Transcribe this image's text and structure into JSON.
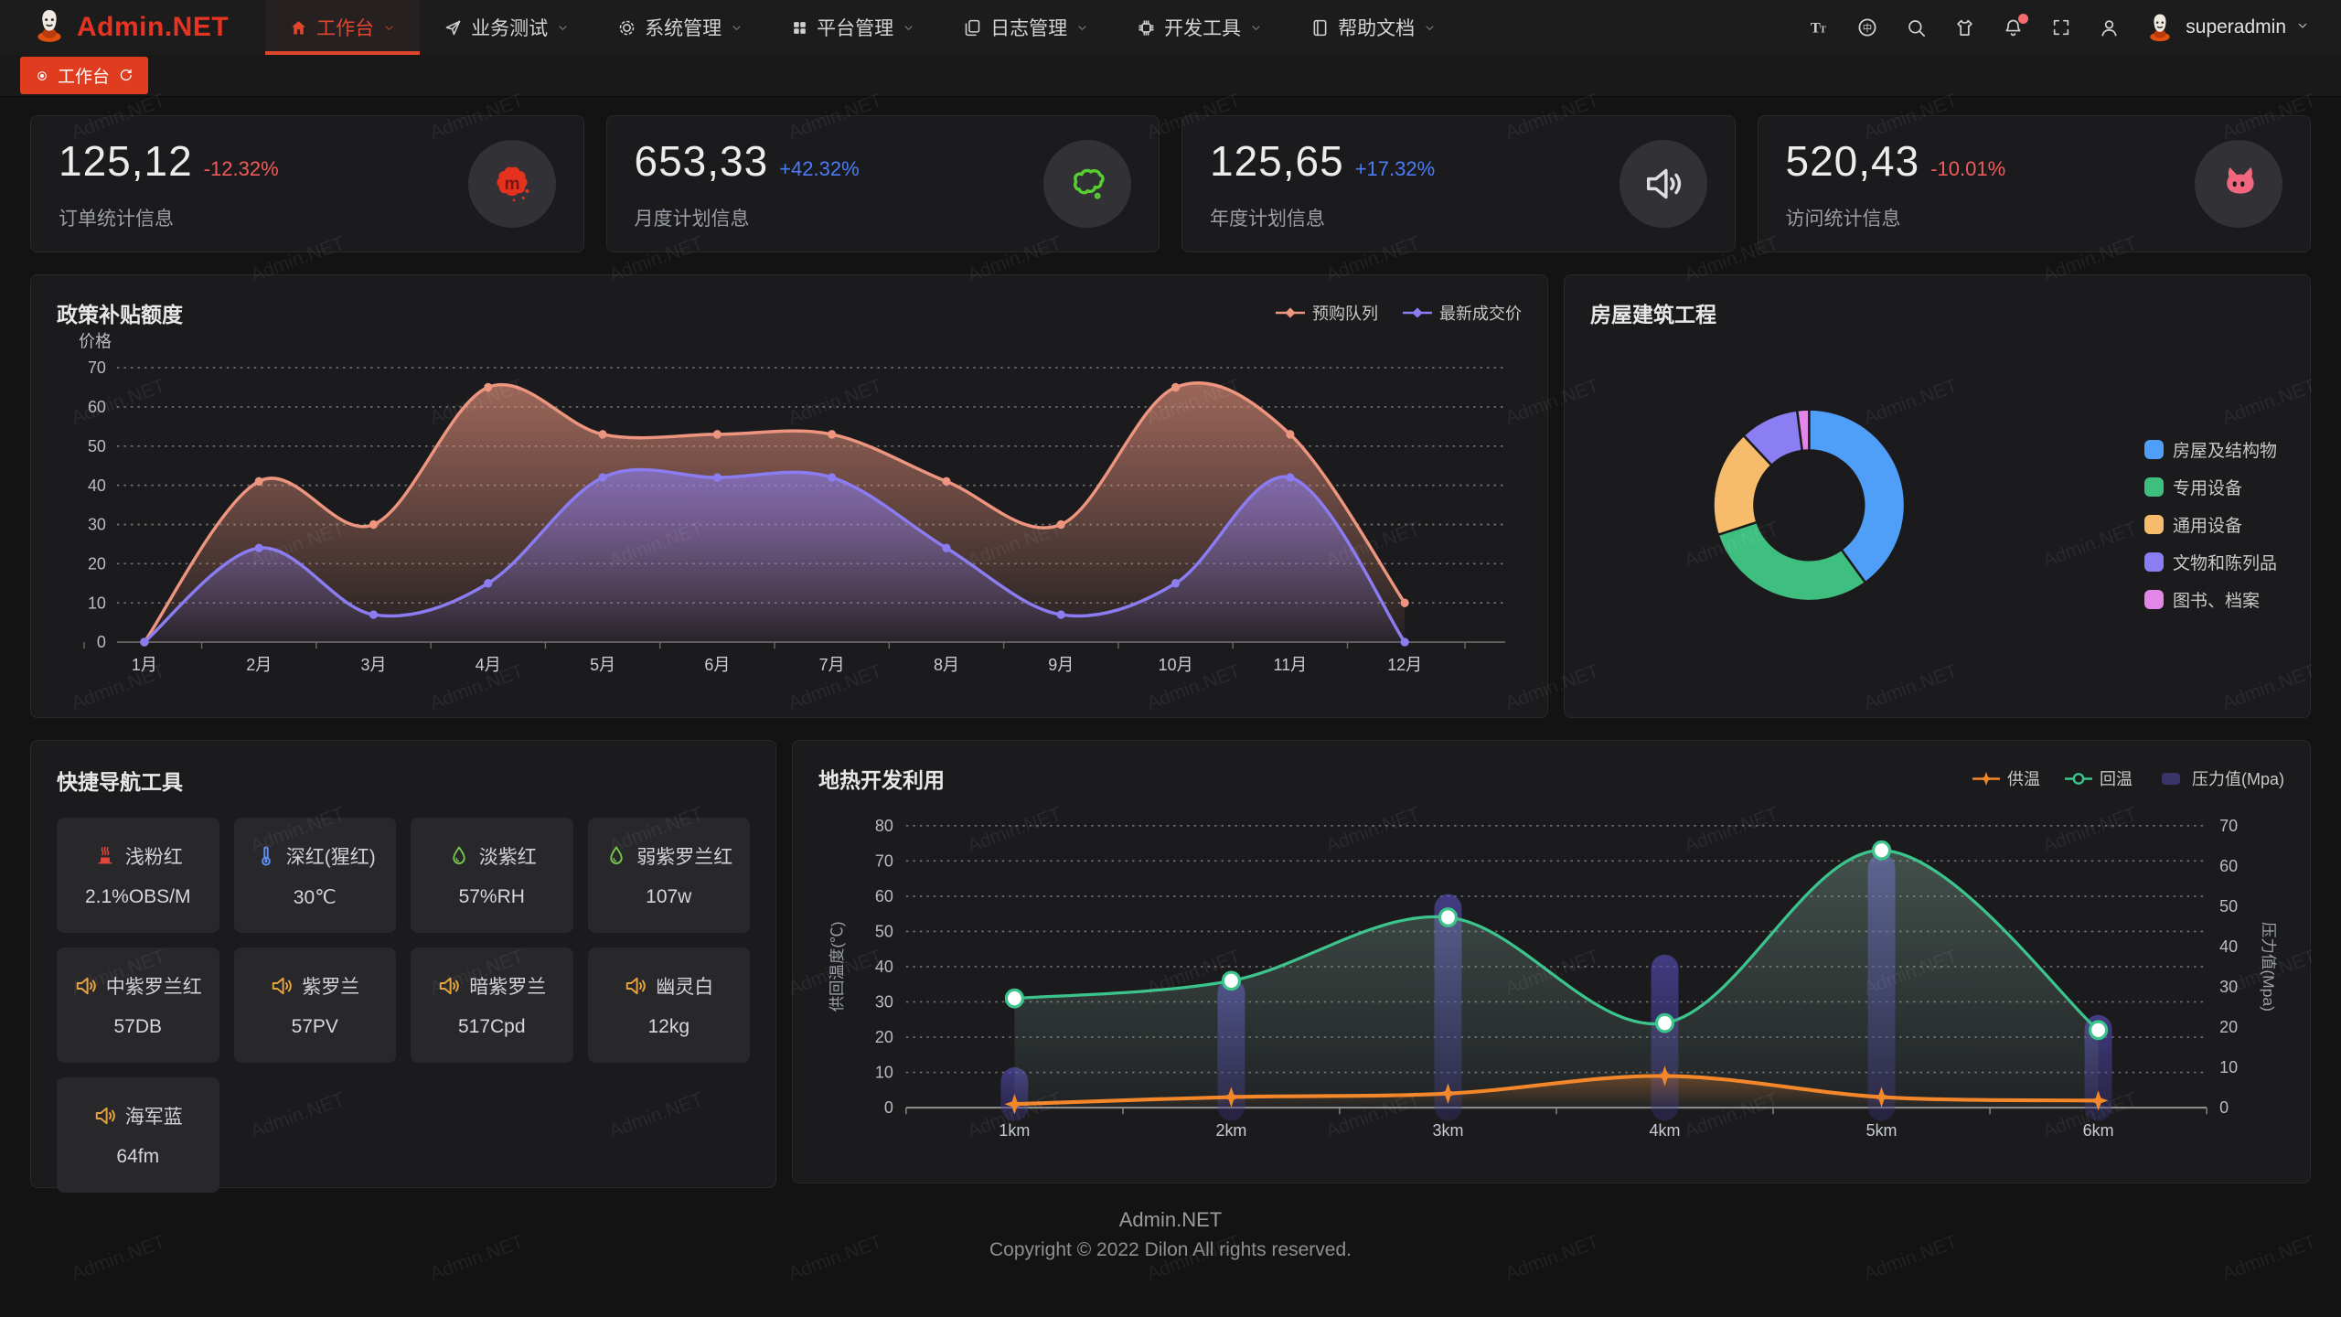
{
  "watermark": {
    "text": "Admin.NET"
  },
  "theme": {
    "accent": "#e0462e",
    "tab_red": "#df3c20",
    "logo_red": "#e53422",
    "delta_down": "#f05b5b",
    "delta_up": "#4b7cf7",
    "grid_line": "rgba(255,255,255,0.38)",
    "axis_text": "#b9bcc4"
  },
  "header": {
    "logo_text": "Admin.NET",
    "nav": [
      {
        "label": "工作台",
        "icon": "home-icon",
        "active": true,
        "has_dropdown": true
      },
      {
        "label": "业务测试",
        "icon": "send-icon",
        "active": false,
        "has_dropdown": true
      },
      {
        "label": "系统管理",
        "icon": "gear-icon",
        "active": false,
        "has_dropdown": true
      },
      {
        "label": "平台管理",
        "icon": "grid-icon",
        "active": false,
        "has_dropdown": true
      },
      {
        "label": "日志管理",
        "icon": "log-icon",
        "active": false,
        "has_dropdown": true
      },
      {
        "label": "开发工具",
        "icon": "chip-icon",
        "active": false,
        "has_dropdown": true
      },
      {
        "label": "帮助文档",
        "icon": "book-icon",
        "active": false,
        "has_dropdown": true
      }
    ],
    "actions": [
      {
        "icon": "font-size-icon"
      },
      {
        "icon": "language-icon"
      },
      {
        "icon": "search-icon"
      },
      {
        "icon": "theme-shirt-icon"
      },
      {
        "icon": "notification-bell-icon",
        "badge": true
      },
      {
        "icon": "fullscreen-icon"
      },
      {
        "icon": "user-icon"
      }
    ],
    "username": "superadmin"
  },
  "tabbar": {
    "tabs": [
      {
        "label": "工作台",
        "active": true
      }
    ]
  },
  "stat_cards": [
    {
      "value": "125,12",
      "delta": "-12.32%",
      "delta_color": "#f05b5b",
      "label": "订单统计信息",
      "icon": "splat-icon"
    },
    {
      "value": "653,33",
      "delta": "+42.32%",
      "delta_color": "#4b7cf7",
      "label": "月度计划信息",
      "icon": "china-map-icon"
    },
    {
      "value": "125,65",
      "delta": "+17.32%",
      "delta_color": "#4b7cf7",
      "label": "年度计划信息",
      "icon": "speaker-icon"
    },
    {
      "value": "520,43",
      "delta": "-10.01%",
      "delta_color": "#f05b5b",
      "label": "访问统计信息",
      "icon": "cat-icon"
    }
  ],
  "chart_data": [
    {
      "id": "subsidy",
      "type": "area",
      "title": "政策补贴额度",
      "ylabel": "价格",
      "ylim": [
        0,
        70
      ],
      "ytick_step": 10,
      "grid": "dashed",
      "legend_position": "top-right",
      "categories": [
        "1月",
        "2月",
        "3月",
        "4月",
        "5月",
        "6月",
        "7月",
        "8月",
        "9月",
        "10月",
        "11月",
        "12月"
      ],
      "series": [
        {
          "name": "预购队列",
          "color": "#ed957f",
          "values": [
            0,
            41,
            30,
            65,
            53,
            53,
            53,
            41,
            30,
            65,
            53,
            10
          ]
        },
        {
          "name": "最新成交价",
          "color": "#8b7df1",
          "values": [
            0,
            24,
            7,
            15,
            42,
            42,
            42,
            24,
            7,
            15,
            42,
            0
          ]
        }
      ]
    },
    {
      "id": "building",
      "type": "pie",
      "title": "房屋建筑工程",
      "legend_position": "right",
      "slices": [
        {
          "name": "房屋及结构物",
          "value": 40,
          "color": "#4f9ef7"
        },
        {
          "name": "专用设备",
          "value": 30,
          "color": "#3fbf7f"
        },
        {
          "name": "通用设备",
          "value": 18,
          "color": "#f7bc6b"
        },
        {
          "name": "文物和陈列品",
          "value": 10,
          "color": "#8b7df2"
        },
        {
          "name": "图书、档案",
          "value": 2,
          "color": "#e287e8"
        }
      ]
    },
    {
      "id": "geothermal",
      "type": "mixed",
      "title": "地热开发利用",
      "categories": [
        "1km",
        "2km",
        "3km",
        "4km",
        "5km",
        "6km"
      ],
      "ylabel_left": "供回温度(℃)",
      "ylim_left": [
        0,
        80
      ],
      "ytick_step_left": 10,
      "ylabel_right": "压力值(Mpa)",
      "ylim_right": [
        0,
        70
      ],
      "ytick_step_right": 10,
      "legend_position": "top-right",
      "series": [
        {
          "name": "供温",
          "type": "line",
          "axis": "left",
          "marker": "star",
          "color": "#f5872b",
          "values": [
            1,
            3,
            4,
            9,
            3,
            2
          ]
        },
        {
          "name": "回温",
          "type": "line",
          "axis": "left",
          "marker": "circle",
          "color": "#3cc48d",
          "values": [
            31,
            36,
            54,
            24,
            73,
            22
          ]
        },
        {
          "name": "压力值(Mpa)",
          "type": "bar",
          "axis": "right",
          "color": "#4a42a0",
          "values": [
            10,
            32,
            53,
            38,
            63,
            23
          ]
        }
      ]
    }
  ],
  "quick_nav": {
    "title": "快捷导航工具",
    "items": [
      {
        "label": "浅粉红",
        "value": "2.1%OBS/M",
        "icon": "heat-icon",
        "icon_color": "#e0463a"
      },
      {
        "label": "深红(猩红)",
        "value": "30℃",
        "icon": "thermometer-icon",
        "icon_color": "#5f8ff2"
      },
      {
        "label": "淡紫红",
        "value": "57%RH",
        "icon": "drop-icon",
        "icon_color": "#79c94c"
      },
      {
        "label": "弱紫罗兰红",
        "value": "107w",
        "icon": "drop-icon",
        "icon_color": "#79c94c"
      },
      {
        "label": "中紫罗兰红",
        "value": "57DB",
        "icon": "speaker-icon",
        "icon_color": "#e6a23c"
      },
      {
        "label": "紫罗兰",
        "value": "57PV",
        "icon": "speaker-icon",
        "icon_color": "#e6a23c"
      },
      {
        "label": "暗紫罗兰",
        "value": "517Cpd",
        "icon": "speaker-icon",
        "icon_color": "#e6a23c"
      },
      {
        "label": "幽灵白",
        "value": "12kg",
        "icon": "speaker-icon",
        "icon_color": "#e6a23c"
      },
      {
        "label": "海军蓝",
        "value": "64fm",
        "icon": "speaker-icon",
        "icon_color": "#e6a23c"
      }
    ]
  },
  "footer": {
    "line1": "Admin.NET",
    "line2": "Copyright © 2022 Dilon All rights reserved."
  }
}
